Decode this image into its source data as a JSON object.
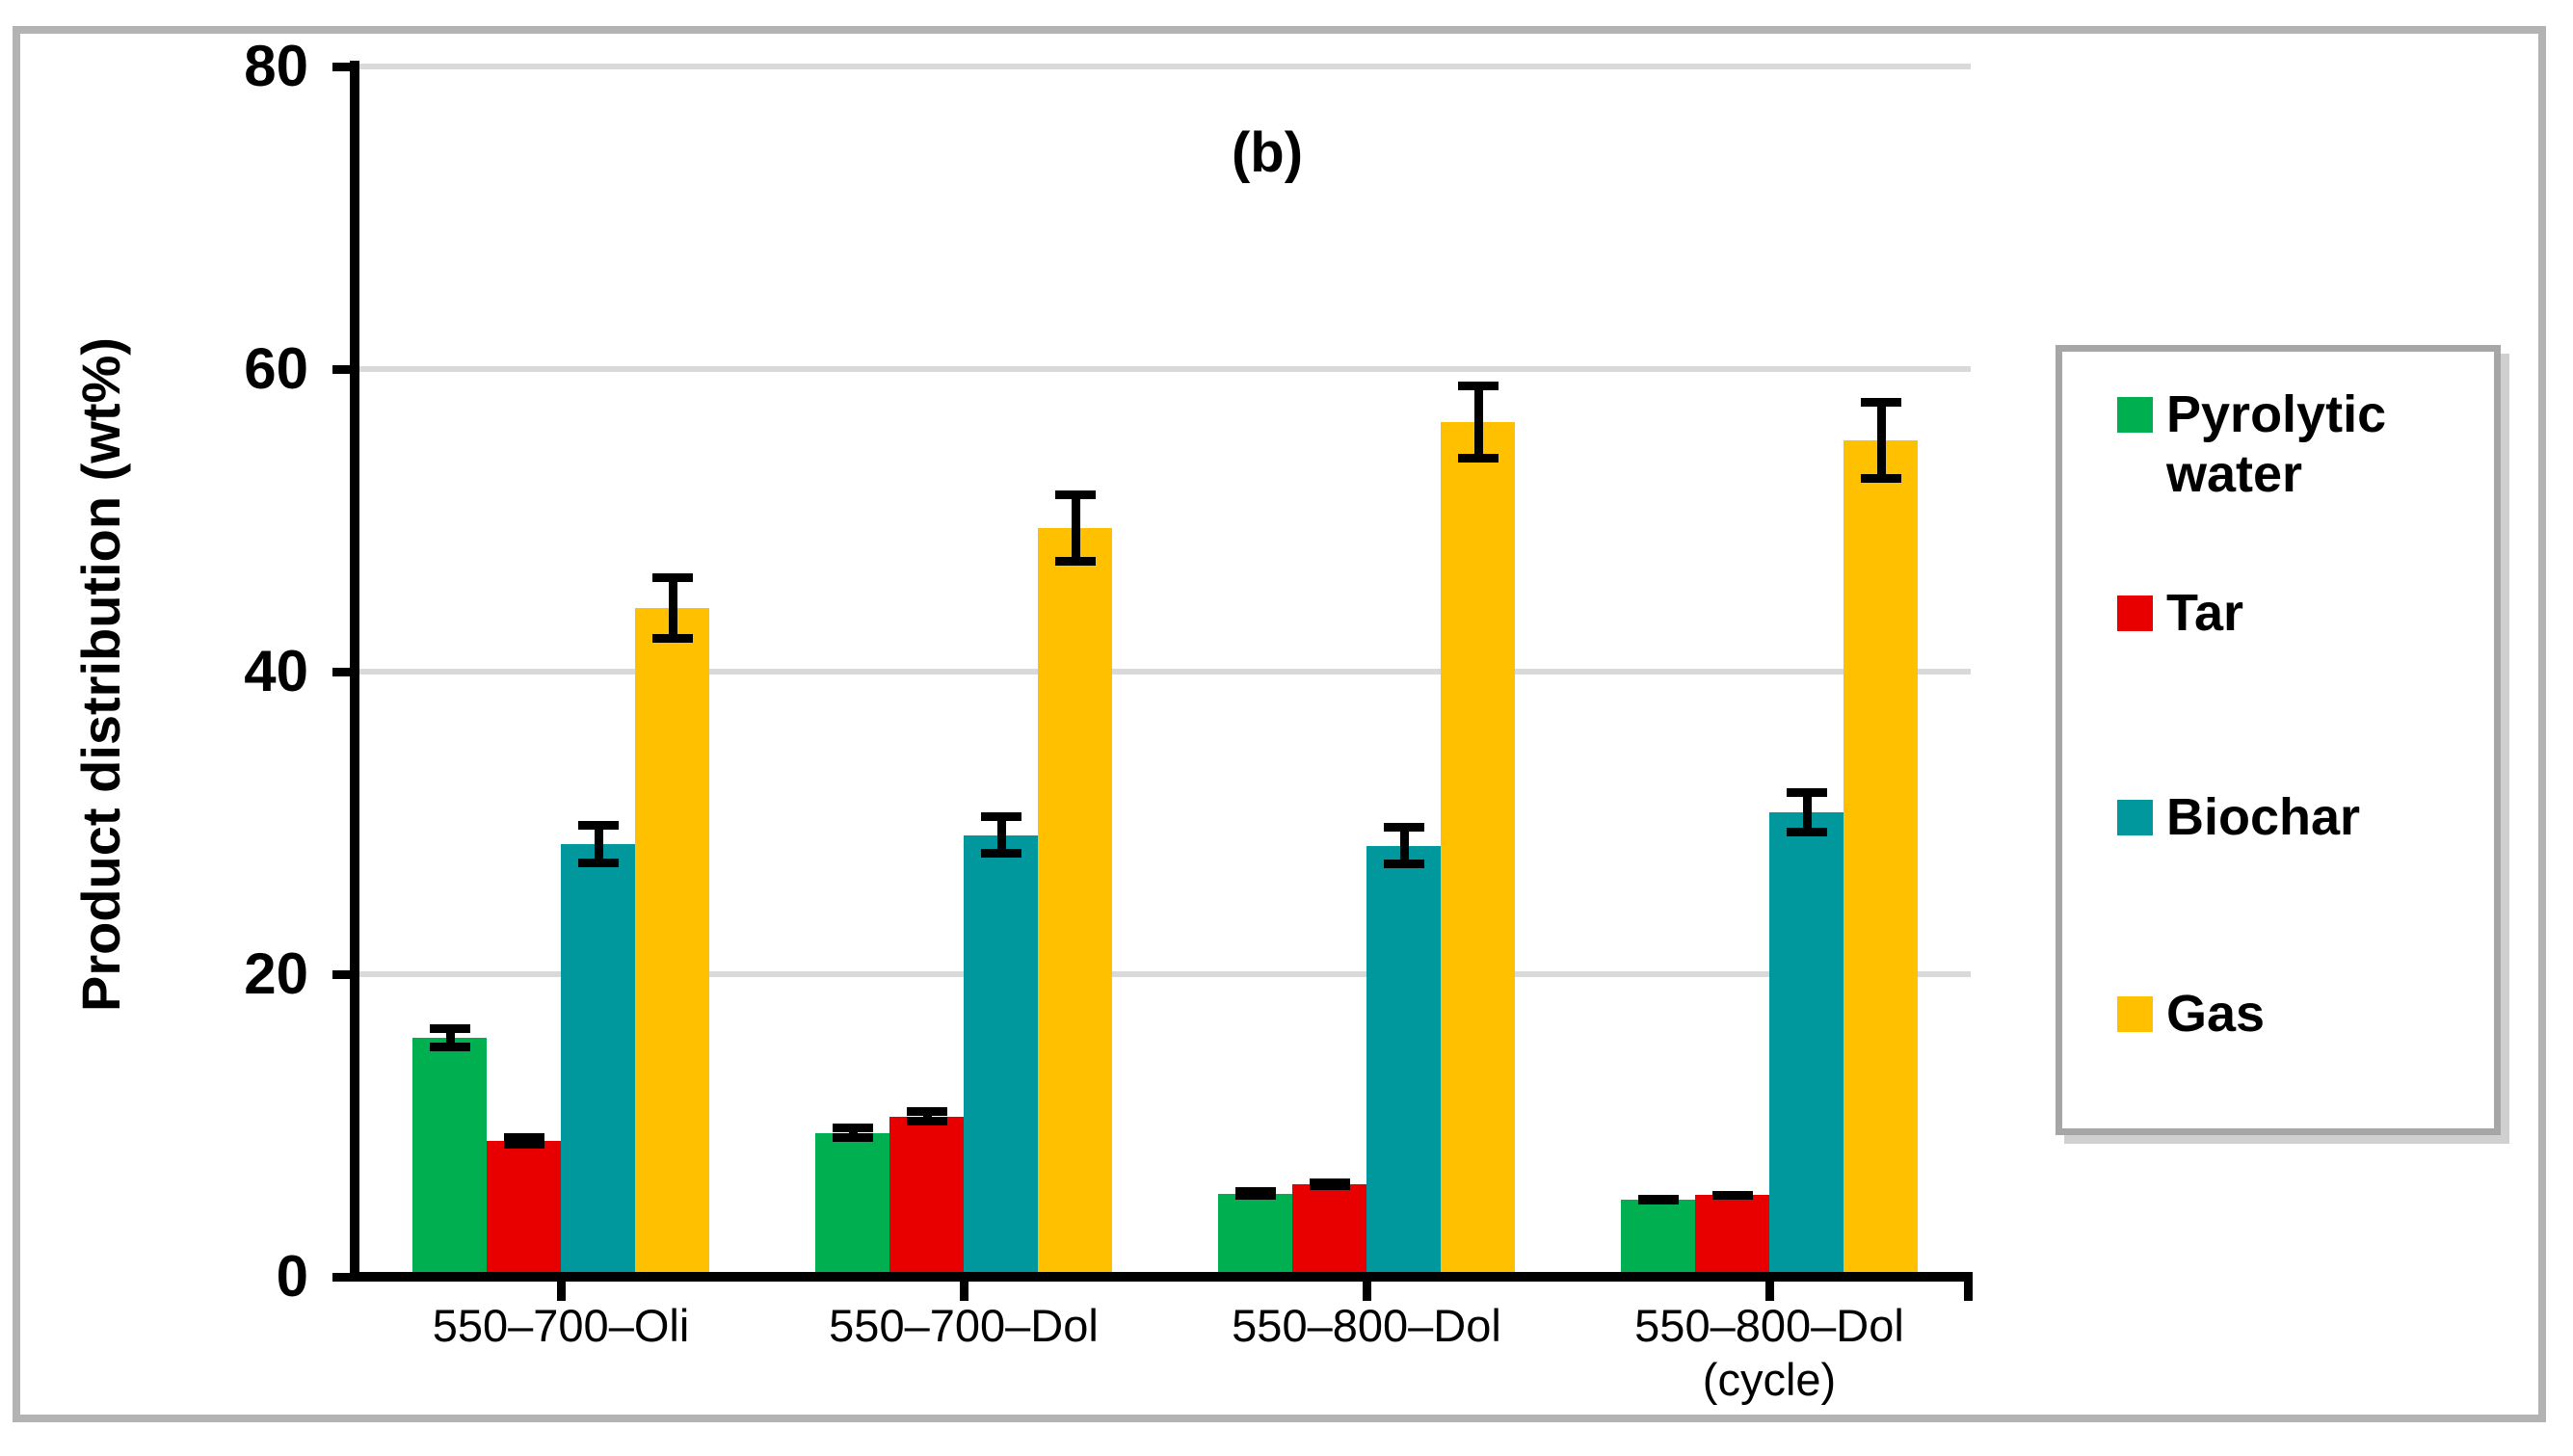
{
  "figure": {
    "panel_label": "(b)",
    "frame_border_color": "#b3b3b3",
    "background_color": "#ffffff",
    "gridline_color": "#d9d9d9",
    "axis_color": "#000000",
    "legend_border_color": "#a6a6a6"
  },
  "chart_data": {
    "type": "bar",
    "title": "(b)",
    "xlabel": "",
    "ylabel": "Product distribution (wt%)",
    "ylim": [
      0,
      80
    ],
    "y_ticks": [
      0,
      20,
      40,
      60,
      80
    ],
    "grid": true,
    "error_bars": true,
    "legend_position": "right outside",
    "categories": [
      {
        "line1": "550–700–Oli",
        "line2": ""
      },
      {
        "line1": "550–700–Dol",
        "line2": ""
      },
      {
        "line1": "550–800–Dol",
        "line2": ""
      },
      {
        "line1": "550–800–Dol",
        "line2": "(cycle)"
      }
    ],
    "series": [
      {
        "name": "Pyrolytic water",
        "color": "#00B050",
        "values": [
          15.8,
          9.5,
          5.5,
          5.1
        ],
        "errors": [
          0.9,
          0.6,
          0.4,
          0.3
        ]
      },
      {
        "name": "Tar",
        "color": "#E80000",
        "values": [
          9.0,
          10.6,
          6.1,
          5.4
        ],
        "errors": [
          0.5,
          0.6,
          0.4,
          0.3
        ]
      },
      {
        "name": "Biochar",
        "color": "#00989D",
        "values": [
          28.6,
          29.2,
          28.5,
          30.7
        ],
        "errors": [
          1.5,
          1.5,
          1.5,
          1.6
        ]
      },
      {
        "name": "Gas",
        "color": "#FFC000",
        "values": [
          44.2,
          49.5,
          56.5,
          55.3
        ],
        "errors": [
          2.3,
          2.5,
          2.7,
          2.8
        ]
      }
    ]
  }
}
